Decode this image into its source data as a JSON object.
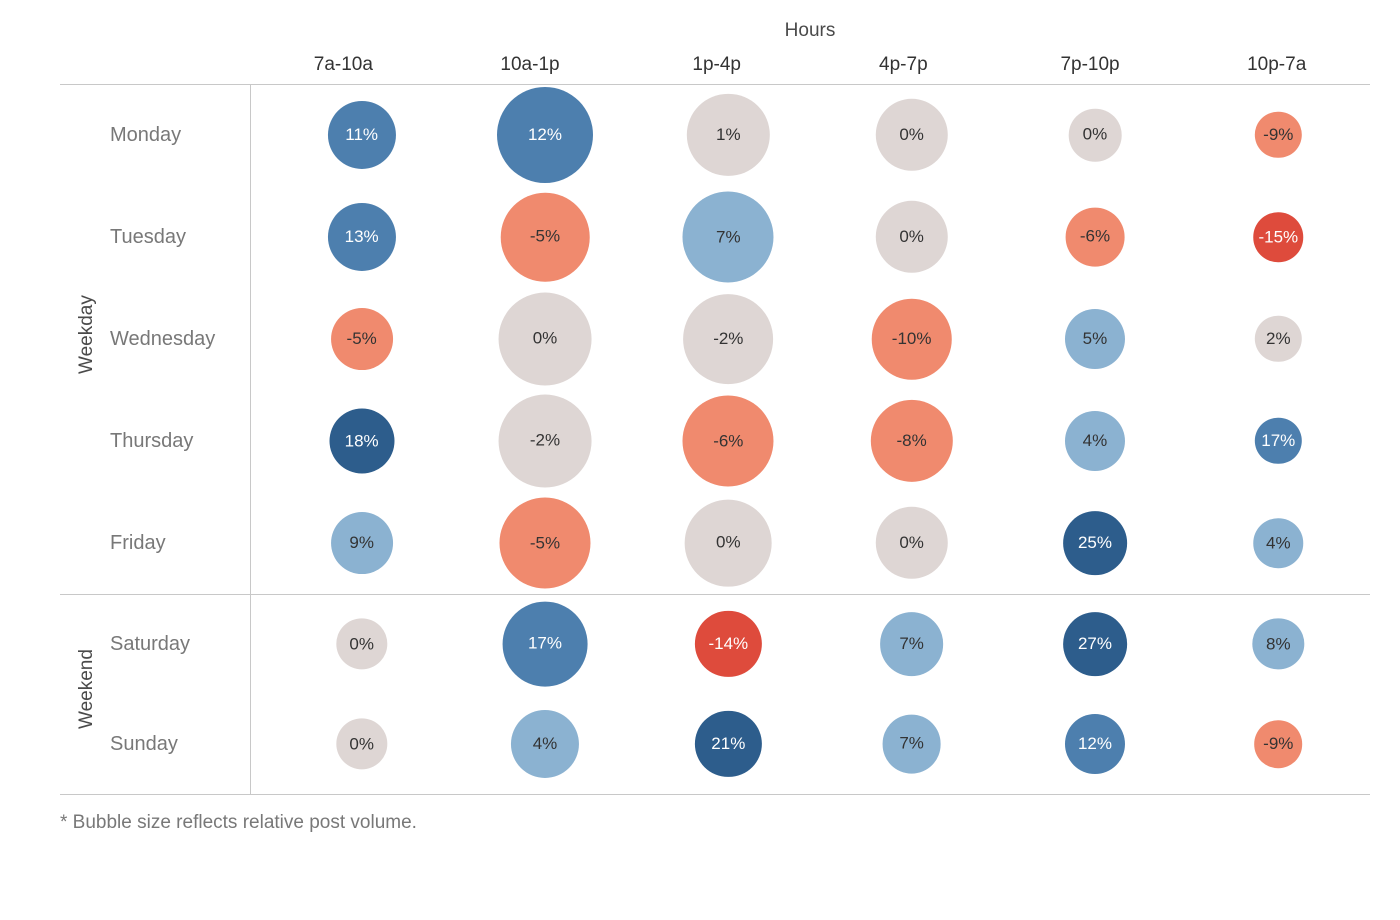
{
  "chart": {
    "type": "bubble-matrix",
    "title": "Hours",
    "footnote": "* Bubble size reflects relative post volume.",
    "background_color": "#ffffff",
    "gridline_color": "#c8c8c8",
    "header_color": "#333333",
    "label_color": "#787878",
    "font_family": "Segoe UI, Helvetica Neue, Arial, sans-serif",
    "title_fontsize": 19,
    "header_fontsize": 19,
    "rowlabel_fontsize": 20,
    "value_fontsize": 17,
    "min_bubble_diameter": 34,
    "max_bubble_diameter": 96,
    "weekday_row_height": 102,
    "weekend_row_height": 100,
    "columns": [
      "7a-10a",
      "10a-1p",
      "1p-4p",
      "4p-7p",
      "7p-10p",
      "10p-7a"
    ],
    "groups": [
      {
        "label": "Weekday",
        "rows": [
          "Monday",
          "Tuesday",
          "Wednesday",
          "Thursday",
          "Friday"
        ]
      },
      {
        "label": "Weekend",
        "rows": [
          "Saturday",
          "Sunday"
        ]
      }
    ],
    "palette": {
      "blue_dark": "#2d5d8c",
      "blue": "#4d7fae",
      "blue_light": "#8bb2d1",
      "grey": "#ded6d4",
      "coral": "#f08a6e",
      "red": "#de4b3c",
      "text_dark": "#333333",
      "text_light": "#ffffff"
    },
    "data": {
      "Monday": [
        {
          "pct": 11,
          "size": 0.55,
          "color": "blue",
          "text": "text_light"
        },
        {
          "pct": 12,
          "size": 1.0,
          "color": "blue",
          "text": "text_light"
        },
        {
          "pct": 1,
          "size": 0.78,
          "color": "grey",
          "text": "text_dark"
        },
        {
          "pct": 0,
          "size": 0.62,
          "color": "grey",
          "text": "text_dark"
        },
        {
          "pct": 0,
          "size": 0.3,
          "color": "grey",
          "text": "text_dark"
        },
        {
          "pct": -9,
          "size": 0.2,
          "color": "coral",
          "text": "text_dark"
        }
      ],
      "Tuesday": [
        {
          "pct": 13,
          "size": 0.55,
          "color": "blue",
          "text": "text_light"
        },
        {
          "pct": -5,
          "size": 0.88,
          "color": "coral",
          "text": "text_dark"
        },
        {
          "pct": 7,
          "size": 0.92,
          "color": "blue_light",
          "text": "text_dark"
        },
        {
          "pct": 0,
          "size": 0.62,
          "color": "grey",
          "text": "text_dark"
        },
        {
          "pct": -6,
          "size": 0.4,
          "color": "coral",
          "text": "text_dark"
        },
        {
          "pct": -15,
          "size": 0.25,
          "color": "red",
          "text": "text_light"
        }
      ],
      "Wednesday": [
        {
          "pct": -5,
          "size": 0.45,
          "color": "coral",
          "text": "text_dark"
        },
        {
          "pct": 0,
          "size": 0.95,
          "color": "grey",
          "text": "text_dark"
        },
        {
          "pct": -2,
          "size": 0.9,
          "color": "grey",
          "text": "text_dark"
        },
        {
          "pct": -10,
          "size": 0.75,
          "color": "coral",
          "text": "text_dark"
        },
        {
          "pct": 5,
          "size": 0.42,
          "color": "blue_light",
          "text": "text_dark"
        },
        {
          "pct": 2,
          "size": 0.2,
          "color": "grey",
          "text": "text_dark"
        }
      ],
      "Thursday": [
        {
          "pct": 18,
          "size": 0.5,
          "color": "blue_dark",
          "text": "text_light"
        },
        {
          "pct": -2,
          "size": 0.95,
          "color": "grey",
          "text": "text_dark"
        },
        {
          "pct": -6,
          "size": 0.92,
          "color": "coral",
          "text": "text_dark"
        },
        {
          "pct": -8,
          "size": 0.78,
          "color": "coral",
          "text": "text_dark"
        },
        {
          "pct": 4,
          "size": 0.42,
          "color": "blue_light",
          "text": "text_dark"
        },
        {
          "pct": 17,
          "size": 0.2,
          "color": "blue",
          "text": "text_light"
        }
      ],
      "Friday": [
        {
          "pct": 9,
          "size": 0.45,
          "color": "blue_light",
          "text": "text_dark"
        },
        {
          "pct": -5,
          "size": 0.92,
          "color": "coral",
          "text": "text_dark"
        },
        {
          "pct": 0,
          "size": 0.85,
          "color": "grey",
          "text": "text_dark"
        },
        {
          "pct": 0,
          "size": 0.62,
          "color": "grey",
          "text": "text_dark"
        },
        {
          "pct": 25,
          "size": 0.48,
          "color": "blue_dark",
          "text": "text_light"
        },
        {
          "pct": 4,
          "size": 0.25,
          "color": "blue_light",
          "text": "text_dark"
        }
      ],
      "Saturday": [
        {
          "pct": 0,
          "size": 0.28,
          "color": "grey",
          "text": "text_dark"
        },
        {
          "pct": 17,
          "size": 0.82,
          "color": "blue",
          "text": "text_light"
        },
        {
          "pct": -14,
          "size": 0.52,
          "color": "red",
          "text": "text_light"
        },
        {
          "pct": 7,
          "size": 0.48,
          "color": "blue_light",
          "text": "text_dark"
        },
        {
          "pct": 27,
          "size": 0.48,
          "color": "blue_dark",
          "text": "text_light"
        },
        {
          "pct": 8,
          "size": 0.28,
          "color": "blue_light",
          "text": "text_dark"
        }
      ],
      "Sunday": [
        {
          "pct": 0,
          "size": 0.28,
          "color": "grey",
          "text": "text_dark"
        },
        {
          "pct": 4,
          "size": 0.55,
          "color": "blue_light",
          "text": "text_dark"
        },
        {
          "pct": 21,
          "size": 0.52,
          "color": "blue_dark",
          "text": "text_light"
        },
        {
          "pct": 7,
          "size": 0.4,
          "color": "blue_light",
          "text": "text_dark"
        },
        {
          "pct": 12,
          "size": 0.42,
          "color": "blue",
          "text": "text_light"
        },
        {
          "pct": -9,
          "size": 0.22,
          "color": "coral",
          "text": "text_dark"
        }
      ]
    }
  }
}
